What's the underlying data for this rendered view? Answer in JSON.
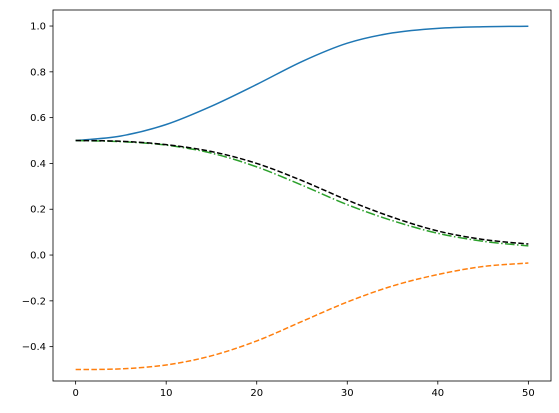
{
  "chart_data": {
    "type": "line",
    "title": "",
    "xlabel": "",
    "ylabel": "",
    "xlim": [
      -2.5,
      52.5
    ],
    "ylim": [
      -0.55,
      1.07
    ],
    "grid": false,
    "x_ticks": [
      0,
      10,
      20,
      30,
      40,
      50
    ],
    "x_tick_labels": [
      "0",
      "10",
      "20",
      "30",
      "40",
      "50"
    ],
    "y_ticks": [
      -0.4,
      -0.2,
      0.0,
      0.2,
      0.4,
      0.6,
      0.8,
      1.0
    ],
    "y_tick_labels": [
      "−0.4",
      "−0.2",
      "0.0",
      "0.2",
      "0.4",
      "0.6",
      "0.8",
      "1.0"
    ],
    "x": [
      0,
      5,
      10,
      15,
      20,
      25,
      30,
      35,
      40,
      45,
      50
    ],
    "series": [
      {
        "color": "#1f77b4",
        "style": "solid",
        "values": [
          0.5,
          0.52,
          0.57,
          0.65,
          0.745,
          0.845,
          0.925,
          0.97,
          0.99,
          0.997,
          0.999
        ]
      },
      {
        "color": "#ff7f0e",
        "style": "dashed",
        "values": [
          -0.5,
          -0.497,
          -0.48,
          -0.44,
          -0.375,
          -0.29,
          -0.205,
          -0.135,
          -0.085,
          -0.05,
          -0.035
        ]
      },
      {
        "color": "#2ca02c",
        "style": "dashdot",
        "values": [
          0.5,
          0.495,
          0.48,
          0.445,
          0.385,
          0.305,
          0.22,
          0.15,
          0.095,
          0.06,
          0.04
        ]
      },
      {
        "color": "#000000",
        "style": "dashed",
        "values": [
          0.5,
          0.497,
          0.482,
          0.452,
          0.4,
          0.325,
          0.24,
          0.165,
          0.105,
          0.068,
          0.048
        ]
      }
    ]
  }
}
